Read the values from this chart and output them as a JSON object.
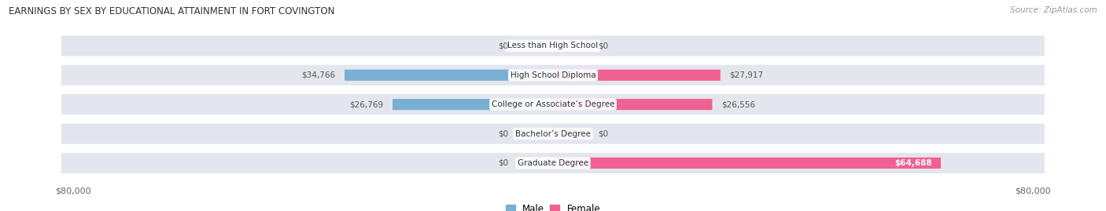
{
  "title": "EARNINGS BY SEX BY EDUCATIONAL ATTAINMENT IN FORT COVINGTON",
  "source": "Source: ZipAtlas.com",
  "categories": [
    "Less than High School",
    "High School Diploma",
    "College or Associate’s Degree",
    "Bachelor’s Degree",
    "Graduate Degree"
  ],
  "male_values": [
    0,
    34766,
    26769,
    0,
    0
  ],
  "female_values": [
    0,
    27917,
    26556,
    0,
    64688
  ],
  "male_color": "#7aafd4",
  "female_color": "#f06090",
  "male_color_zero": "#b8d0ea",
  "female_color_zero": "#f4aac4",
  "row_bg_color": "#e4e6ee",
  "max_value": 80000,
  "zero_stub": 6000,
  "legend_male": "Male",
  "legend_female": "Female",
  "title_fontsize": 8.5,
  "source_fontsize": 7.5,
  "label_fontsize": 7.5,
  "cat_fontsize": 7.5
}
